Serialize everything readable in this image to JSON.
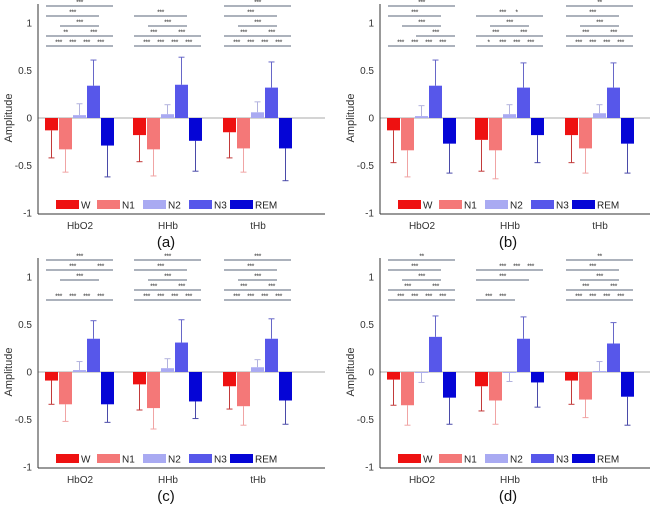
{
  "figure": {
    "colors": {
      "W": "#ee1111",
      "N1": "#f47878",
      "N2": "#a9aaf2",
      "N3": "#5757ea",
      "REM": "#0505d6"
    },
    "errorbar_colors": {
      "W": "#c23a3a",
      "N1": "#f0a4a4",
      "N2": "#b2b2de",
      "N3": "#6767c8",
      "REM": "#4a4aa8"
    }
  },
  "chart_data": [
    {
      "panel": "(a)",
      "type": "bar",
      "ylabel": "Amplitude",
      "ylim": [
        -1,
        1.2
      ],
      "yticks": [
        "-1",
        "-0.5",
        "0",
        "0.5",
        "1"
      ],
      "ytick_values": [
        -1,
        -0.5,
        0,
        0.5,
        1
      ],
      "categories": [
        "HbO2",
        "HHb",
        "tHb"
      ],
      "legend": [
        "W",
        "N1",
        "N2",
        "N3",
        "REM"
      ],
      "legend_position": "bottom-inside",
      "series": [
        {
          "name": "W",
          "values": [
            -0.13,
            -0.18,
            -0.15
          ],
          "err": [
            0.29,
            0.28,
            0.27
          ]
        },
        {
          "name": "N1",
          "values": [
            -0.33,
            -0.33,
            -0.32
          ],
          "err": [
            0.24,
            0.28,
            0.25
          ]
        },
        {
          "name": "N2",
          "values": [
            0.03,
            0.04,
            0.06
          ],
          "err": [
            0.12,
            0.1,
            0.11
          ]
        },
        {
          "name": "N3",
          "values": [
            0.34,
            0.35,
            0.32
          ],
          "err": [
            0.27,
            0.29,
            0.27
          ]
        },
        {
          "name": "REM",
          "values": [
            -0.29,
            -0.24,
            -0.32
          ],
          "err": [
            0.33,
            0.32,
            0.34
          ]
        }
      ],
      "significance": [
        [
          {
            "from": "W",
            "to": "REM",
            "label": "***"
          },
          {
            "from": "W",
            "to": "N3",
            "label": "***"
          },
          {
            "from": "N1",
            "to": "N3",
            "label": "***"
          },
          {
            "from": "W",
            "to": "N2",
            "label": "**"
          },
          {
            "from": "N2",
            "to": "REM",
            "label": "***"
          },
          {
            "from": "W",
            "to": "N1",
            "label": "***"
          },
          {
            "from": "N1",
            "to": "N2",
            "label": "***"
          },
          {
            "from": "N2",
            "to": "N3",
            "label": "***"
          },
          {
            "from": "N3",
            "to": "REM",
            "label": "***"
          }
        ],
        [
          {
            "from": "W",
            "to": "N3",
            "label": "***"
          },
          {
            "from": "N1",
            "to": "N3",
            "label": "***"
          },
          {
            "from": "W",
            "to": "N2",
            "label": "***"
          },
          {
            "from": "N2",
            "to": "REM",
            "label": "***"
          },
          {
            "from": "W",
            "to": "N1",
            "label": "***"
          },
          {
            "from": "N1",
            "to": "N2",
            "label": "***"
          },
          {
            "from": "N2",
            "to": "N3",
            "label": "***"
          },
          {
            "from": "N3",
            "to": "REM",
            "label": "***"
          }
        ],
        [
          {
            "from": "W",
            "to": "REM",
            "label": "***"
          },
          {
            "from": "W",
            "to": "N3",
            "label": "***"
          },
          {
            "from": "N1",
            "to": "N3",
            "label": "***"
          },
          {
            "from": "W",
            "to": "N2",
            "label": "***"
          },
          {
            "from": "N2",
            "to": "REM",
            "label": "***"
          },
          {
            "from": "W",
            "to": "N1",
            "label": "***"
          },
          {
            "from": "N1",
            "to": "N2",
            "label": "***"
          },
          {
            "from": "N2",
            "to": "N3",
            "label": "***"
          },
          {
            "from": "N3",
            "to": "REM",
            "label": "***"
          }
        ]
      ]
    },
    {
      "panel": "(b)",
      "type": "bar",
      "ylabel": "Amplitude",
      "ylim": [
        -1,
        1.2
      ],
      "yticks": [
        "-1",
        "-0.5",
        "0",
        "0.5",
        "1"
      ],
      "ytick_values": [
        -1,
        -0.5,
        0,
        0.5,
        1
      ],
      "categories": [
        "HbO2",
        "HHb",
        "tHb"
      ],
      "legend": [
        "W",
        "N1",
        "N2",
        "N3",
        "REM"
      ],
      "legend_position": "bottom-inside",
      "series": [
        {
          "name": "W",
          "values": [
            -0.13,
            -0.23,
            -0.18
          ],
          "err": [
            0.34,
            0.33,
            0.29
          ]
        },
        {
          "name": "N1",
          "values": [
            -0.34,
            -0.34,
            -0.32
          ],
          "err": [
            0.28,
            0.3,
            0.26
          ]
        },
        {
          "name": "N2",
          "values": [
            0.02,
            0.04,
            0.05
          ],
          "err": [
            0.11,
            0.1,
            0.09
          ]
        },
        {
          "name": "N3",
          "values": [
            0.34,
            0.32,
            0.32
          ],
          "err": [
            0.27,
            0.26,
            0.26
          ]
        },
        {
          "name": "REM",
          "values": [
            -0.27,
            -0.18,
            -0.27
          ],
          "err": [
            0.31,
            0.29,
            0.31
          ]
        }
      ],
      "significance": [
        [
          {
            "from": "W",
            "to": "REM",
            "label": "***"
          },
          {
            "from": "W",
            "to": "N3",
            "label": "***"
          },
          {
            "from": "N1",
            "to": "N3",
            "label": "***"
          },
          {
            "from": "N2",
            "to": "REM",
            "label": "***"
          },
          {
            "from": "W",
            "to": "N1",
            "label": "***"
          },
          {
            "from": "N1",
            "to": "N2",
            "label": "***"
          },
          {
            "from": "N2",
            "to": "N3",
            "label": "***"
          },
          {
            "from": "N3",
            "to": "REM",
            "label": "***"
          }
        ],
        [
          {
            "from": "N1",
            "to": "REM",
            "label": "*"
          },
          {
            "from": "W",
            "to": "N3",
            "label": "***"
          },
          {
            "from": "N1",
            "to": "N3",
            "label": "***"
          },
          {
            "from": "W",
            "to": "N2",
            "label": "***"
          },
          {
            "from": "N2",
            "to": "REM",
            "label": "***"
          },
          {
            "from": "W",
            "to": "N1",
            "label": "*"
          },
          {
            "from": "N1",
            "to": "N2",
            "label": "***"
          },
          {
            "from": "N2",
            "to": "N3",
            "label": "***"
          },
          {
            "from": "N3",
            "to": "REM",
            "label": "***"
          }
        ],
        [
          {
            "from": "W",
            "to": "REM",
            "label": "**"
          },
          {
            "from": "W",
            "to": "N3",
            "label": "***"
          },
          {
            "from": "N1",
            "to": "N3",
            "label": "***"
          },
          {
            "from": "W",
            "to": "N2",
            "label": "***"
          },
          {
            "from": "N2",
            "to": "REM",
            "label": "***"
          },
          {
            "from": "W",
            "to": "N1",
            "label": "***"
          },
          {
            "from": "N1",
            "to": "N2",
            "label": "***"
          },
          {
            "from": "N2",
            "to": "N3",
            "label": "***"
          },
          {
            "from": "N3",
            "to": "REM",
            "label": "***"
          }
        ]
      ]
    },
    {
      "panel": "(c)",
      "type": "bar",
      "ylabel": "Amplitude",
      "ylim": [
        -1,
        1.2
      ],
      "yticks": [
        "-1",
        "-0.5",
        "0",
        "0.5",
        "1"
      ],
      "ytick_values": [
        -1,
        -0.5,
        0,
        0.5,
        1
      ],
      "categories": [
        "HbO2",
        "HHb",
        "tHb"
      ],
      "legend": [
        "W",
        "N1",
        "N2",
        "N3",
        "REM"
      ],
      "legend_position": "bottom-inside",
      "series": [
        {
          "name": "W",
          "values": [
            -0.09,
            -0.13,
            -0.15
          ],
          "err": [
            0.25,
            0.27,
            0.24
          ]
        },
        {
          "name": "N1",
          "values": [
            -0.34,
            -0.38,
            -0.36
          ],
          "err": [
            0.18,
            0.22,
            0.2
          ]
        },
        {
          "name": "N2",
          "values": [
            0.02,
            0.04,
            0.05
          ],
          "err": [
            0.09,
            0.1,
            0.08
          ]
        },
        {
          "name": "N3",
          "values": [
            0.35,
            0.31,
            0.35
          ],
          "err": [
            0.19,
            0.24,
            0.21
          ]
        },
        {
          "name": "REM",
          "values": [
            -0.34,
            -0.31,
            -0.3
          ],
          "err": [
            0.19,
            0.18,
            0.25
          ]
        }
      ],
      "significance": [
        [
          {
            "from": "W",
            "to": "REM",
            "label": "***"
          },
          {
            "from": "W",
            "to": "N3",
            "label": "***"
          },
          {
            "from": "N1",
            "to": "N3",
            "label": "***"
          },
          {
            "from": "N3",
            "to": "REM",
            "label": "***",
            "level": 3
          },
          {
            "from": "W",
            "to": "N1",
            "label": "***"
          },
          {
            "from": "N1",
            "to": "N2",
            "label": "***"
          },
          {
            "from": "N2",
            "to": "N3",
            "label": "***"
          },
          {
            "from": "N3",
            "to": "REM",
            "label": "***"
          }
        ],
        [
          {
            "from": "W",
            "to": "REM",
            "label": "***"
          },
          {
            "from": "W",
            "to": "N3",
            "label": "***"
          },
          {
            "from": "N1",
            "to": "N3",
            "label": "***"
          },
          {
            "from": "W",
            "to": "N2",
            "label": "***"
          },
          {
            "from": "N2",
            "to": "REM",
            "label": "***"
          },
          {
            "from": "W",
            "to": "N1",
            "label": "***"
          },
          {
            "from": "N1",
            "to": "N2",
            "label": "***"
          },
          {
            "from": "N2",
            "to": "N3",
            "label": "***"
          },
          {
            "from": "N3",
            "to": "REM",
            "label": "***"
          }
        ],
        [
          {
            "from": "W",
            "to": "REM",
            "label": "***"
          },
          {
            "from": "W",
            "to": "N3",
            "label": "***"
          },
          {
            "from": "N1",
            "to": "N3",
            "label": "***"
          },
          {
            "from": "W",
            "to": "N2",
            "label": "***"
          },
          {
            "from": "N2",
            "to": "REM",
            "label": "***"
          },
          {
            "from": "W",
            "to": "N1",
            "label": "***"
          },
          {
            "from": "N1",
            "to": "N2",
            "label": "***"
          },
          {
            "from": "N2",
            "to": "N3",
            "label": "***"
          },
          {
            "from": "N3",
            "to": "REM",
            "label": "***"
          }
        ]
      ]
    },
    {
      "panel": "(d)",
      "type": "bar",
      "ylabel": "Amplitude",
      "ylim": [
        -1,
        1.2
      ],
      "yticks": [
        "-1",
        "-0.5",
        "0",
        "0.5",
        "1"
      ],
      "ytick_values": [
        -1,
        -0.5,
        0,
        0.5,
        1
      ],
      "categories": [
        "HbO2",
        "HHb",
        "tHb"
      ],
      "legend": [
        "W",
        "N1",
        "N2",
        "N3",
        "REM"
      ],
      "legend_position": "bottom-inside",
      "series": [
        {
          "name": "W",
          "values": [
            -0.08,
            -0.15,
            -0.09
          ],
          "err": [
            0.27,
            0.26,
            0.25
          ]
        },
        {
          "name": "N1",
          "values": [
            -0.35,
            -0.3,
            -0.29
          ],
          "err": [
            0.21,
            0.25,
            0.19
          ]
        },
        {
          "name": "N2",
          "values": [
            -0.01,
            -0.01,
            0.01
          ],
          "err": [
            0.1,
            0.09,
            0.1
          ]
        },
        {
          "name": "N3",
          "values": [
            0.37,
            0.35,
            0.3
          ],
          "err": [
            0.22,
            0.23,
            0.22
          ]
        },
        {
          "name": "REM",
          "values": [
            -0.27,
            -0.11,
            -0.26
          ],
          "err": [
            0.28,
            0.26,
            0.3
          ]
        }
      ],
      "significance": [
        [
          {
            "from": "W",
            "to": "REM",
            "label": "**"
          },
          {
            "from": "W",
            "to": "N3",
            "label": "***"
          },
          {
            "from": "N1",
            "to": "N3",
            "label": "***"
          },
          {
            "from": "W",
            "to": "N2",
            "label": "***"
          },
          {
            "from": "N2",
            "to": "REM",
            "label": "***"
          },
          {
            "from": "W",
            "to": "N1",
            "label": "***"
          },
          {
            "from": "N1",
            "to": "N2",
            "label": "***"
          },
          {
            "from": "N2",
            "to": "N3",
            "label": "***"
          },
          {
            "from": "N3",
            "to": "REM",
            "label": "***"
          }
        ],
        [
          {
            "from": "W",
            "to": "N3",
            "label": "***"
          },
          {
            "from": "N1",
            "to": "REM",
            "label": "***"
          },
          {
            "from": "W",
            "to": "N3",
            "label": "***",
            "level": 2
          },
          {
            "from": "N3",
            "to": "REM",
            "label": "***",
            "level": 3
          },
          {
            "from": "W",
            "to": "N1",
            "label": "***"
          },
          {
            "from": "N1",
            "to": "N2",
            "label": "***"
          }
        ],
        [
          {
            "from": "W",
            "to": "REM",
            "label": "**"
          },
          {
            "from": "W",
            "to": "N3",
            "label": "***"
          },
          {
            "from": "N1",
            "to": "N3",
            "label": "***"
          },
          {
            "from": "W",
            "to": "N2",
            "label": "***"
          },
          {
            "from": "N2",
            "to": "REM",
            "label": "***"
          },
          {
            "from": "W",
            "to": "N1",
            "label": "***"
          },
          {
            "from": "N1",
            "to": "N2",
            "label": "***"
          },
          {
            "from": "N2",
            "to": "N3",
            "label": "***"
          },
          {
            "from": "N3",
            "to": "REM",
            "label": "***"
          }
        ]
      ]
    }
  ]
}
